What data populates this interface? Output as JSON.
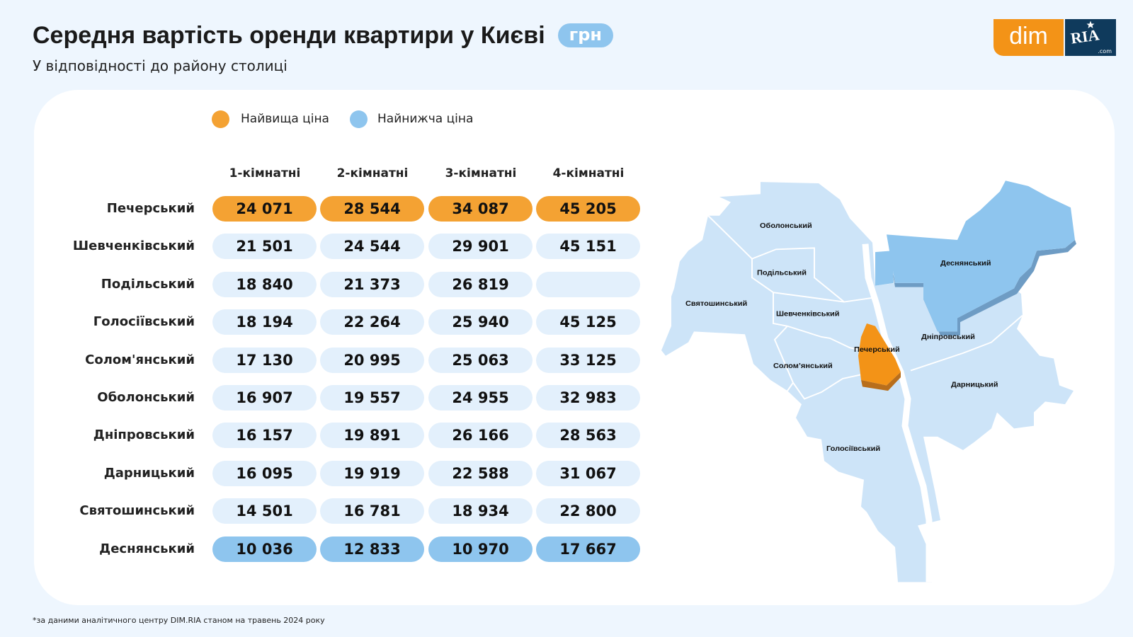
{
  "header": {
    "title": "Середня вартість оренди квартири у Києві",
    "unit_badge": "грн",
    "subtitle": "У відповідності до району столиці"
  },
  "logo": {
    "dim": "dim",
    "ria": "RIA",
    "com": ".com"
  },
  "legend": {
    "highest": {
      "label": "Найвища ціна",
      "color": "#F4A233"
    },
    "lowest": {
      "label": "Найнижча ціна",
      "color": "#8EC5EE"
    }
  },
  "colors": {
    "highest": "#F4A233",
    "lowest": "#8EC5EE",
    "default_cell": "#E3F0FC",
    "background": "#EEF6FE"
  },
  "chart_data": {
    "type": "table",
    "columns": [
      "1-кімнатні",
      "2-кімнатні",
      "3-кімнатні",
      "4-кімнатні"
    ],
    "rows": [
      {
        "district": "Печерський",
        "values": [
          "24 071",
          "28 544",
          "34 087",
          "45 205"
        ],
        "highlight": "highest"
      },
      {
        "district": "Шевченківський",
        "values": [
          "21 501",
          "24 544",
          "29 901",
          "45 151"
        ]
      },
      {
        "district": "Подільський",
        "values": [
          "18 840",
          "21 373",
          "26 819",
          ""
        ]
      },
      {
        "district": "Голосіївський",
        "values": [
          "18 194",
          "22 264",
          "25 940",
          "45 125"
        ]
      },
      {
        "district": "Солом'янський",
        "values": [
          "17 130",
          "20 995",
          "25 063",
          "33 125"
        ]
      },
      {
        "district": "Оболонський",
        "values": [
          "16 907",
          "19 557",
          "24 955",
          "32 983"
        ]
      },
      {
        "district": "Дніпровський",
        "values": [
          "16 157",
          "19 891",
          "26 166",
          "28 563"
        ]
      },
      {
        "district": "Дарницький",
        "values": [
          "16 095",
          "19 919",
          "22 588",
          "31 067"
        ]
      },
      {
        "district": "Святошинський",
        "values": [
          "14 501",
          "16 781",
          "18 934",
          "22 800"
        ]
      },
      {
        "district": "Деснянський",
        "values": [
          "10 036",
          "12 833",
          "10 970",
          "17 667"
        ],
        "highlight": "lowest"
      }
    ]
  },
  "map": {
    "highest_district": "Печерський",
    "lowest_district": "Деснянський",
    "labels": {
      "obolonskyi": "Оболонський",
      "podilskyi": "Подільський",
      "sviatoshynskyi": "Святошинський",
      "shevchenkivskyi": "Шевченківський",
      "pecherskyi": "Печерський",
      "solomianskyi": "Солом’янський",
      "dniprovskyi": "Дніпровський",
      "desnianskyi": "Деснянський",
      "darnytskyi": "Дарницький",
      "holosiivskyi": "Голосіївський"
    }
  },
  "footnote": "*за даними аналітичного центру DIM.RIA станом на травень 2024 року"
}
